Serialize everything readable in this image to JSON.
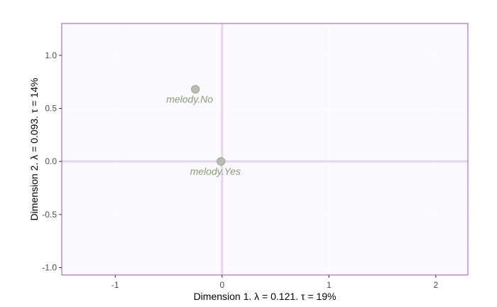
{
  "chart_data": {
    "type": "scatter",
    "xlabel": "Dimension 1.   λ = 0.121.  τ = 19%",
    "ylabel": "Dimension 2.   λ = 0.093.  τ = 14%",
    "xlim": [
      -1.5,
      2.3
    ],
    "ylim": [
      -1.07,
      1.3
    ],
    "xticks": [
      -1,
      0,
      1,
      2
    ],
    "yticks": [
      -1.0,
      -0.5,
      0.0,
      0.5,
      1.0
    ],
    "xtick_labels": [
      "-1",
      "0",
      "1",
      "2"
    ],
    "ytick_labels": [
      "-1.0",
      "-0.5",
      "0.0",
      "0.5",
      "1.0"
    ],
    "grid": true,
    "points": [
      {
        "label": "melody.No",
        "x": -0.25,
        "y": 0.68
      },
      {
        "label": "melody.Yes",
        "x": -0.01,
        "y": 0.0
      }
    ],
    "colors": {
      "panel_background": "#fbf8fe",
      "panel_border": "#9c4fbd",
      "grid": "#ffffff",
      "zero_lines": "#e3d6e8",
      "point_fill": "#b2b8ac",
      "point_stroke": "#98a08f",
      "point_label": "#8a9e78"
    }
  }
}
